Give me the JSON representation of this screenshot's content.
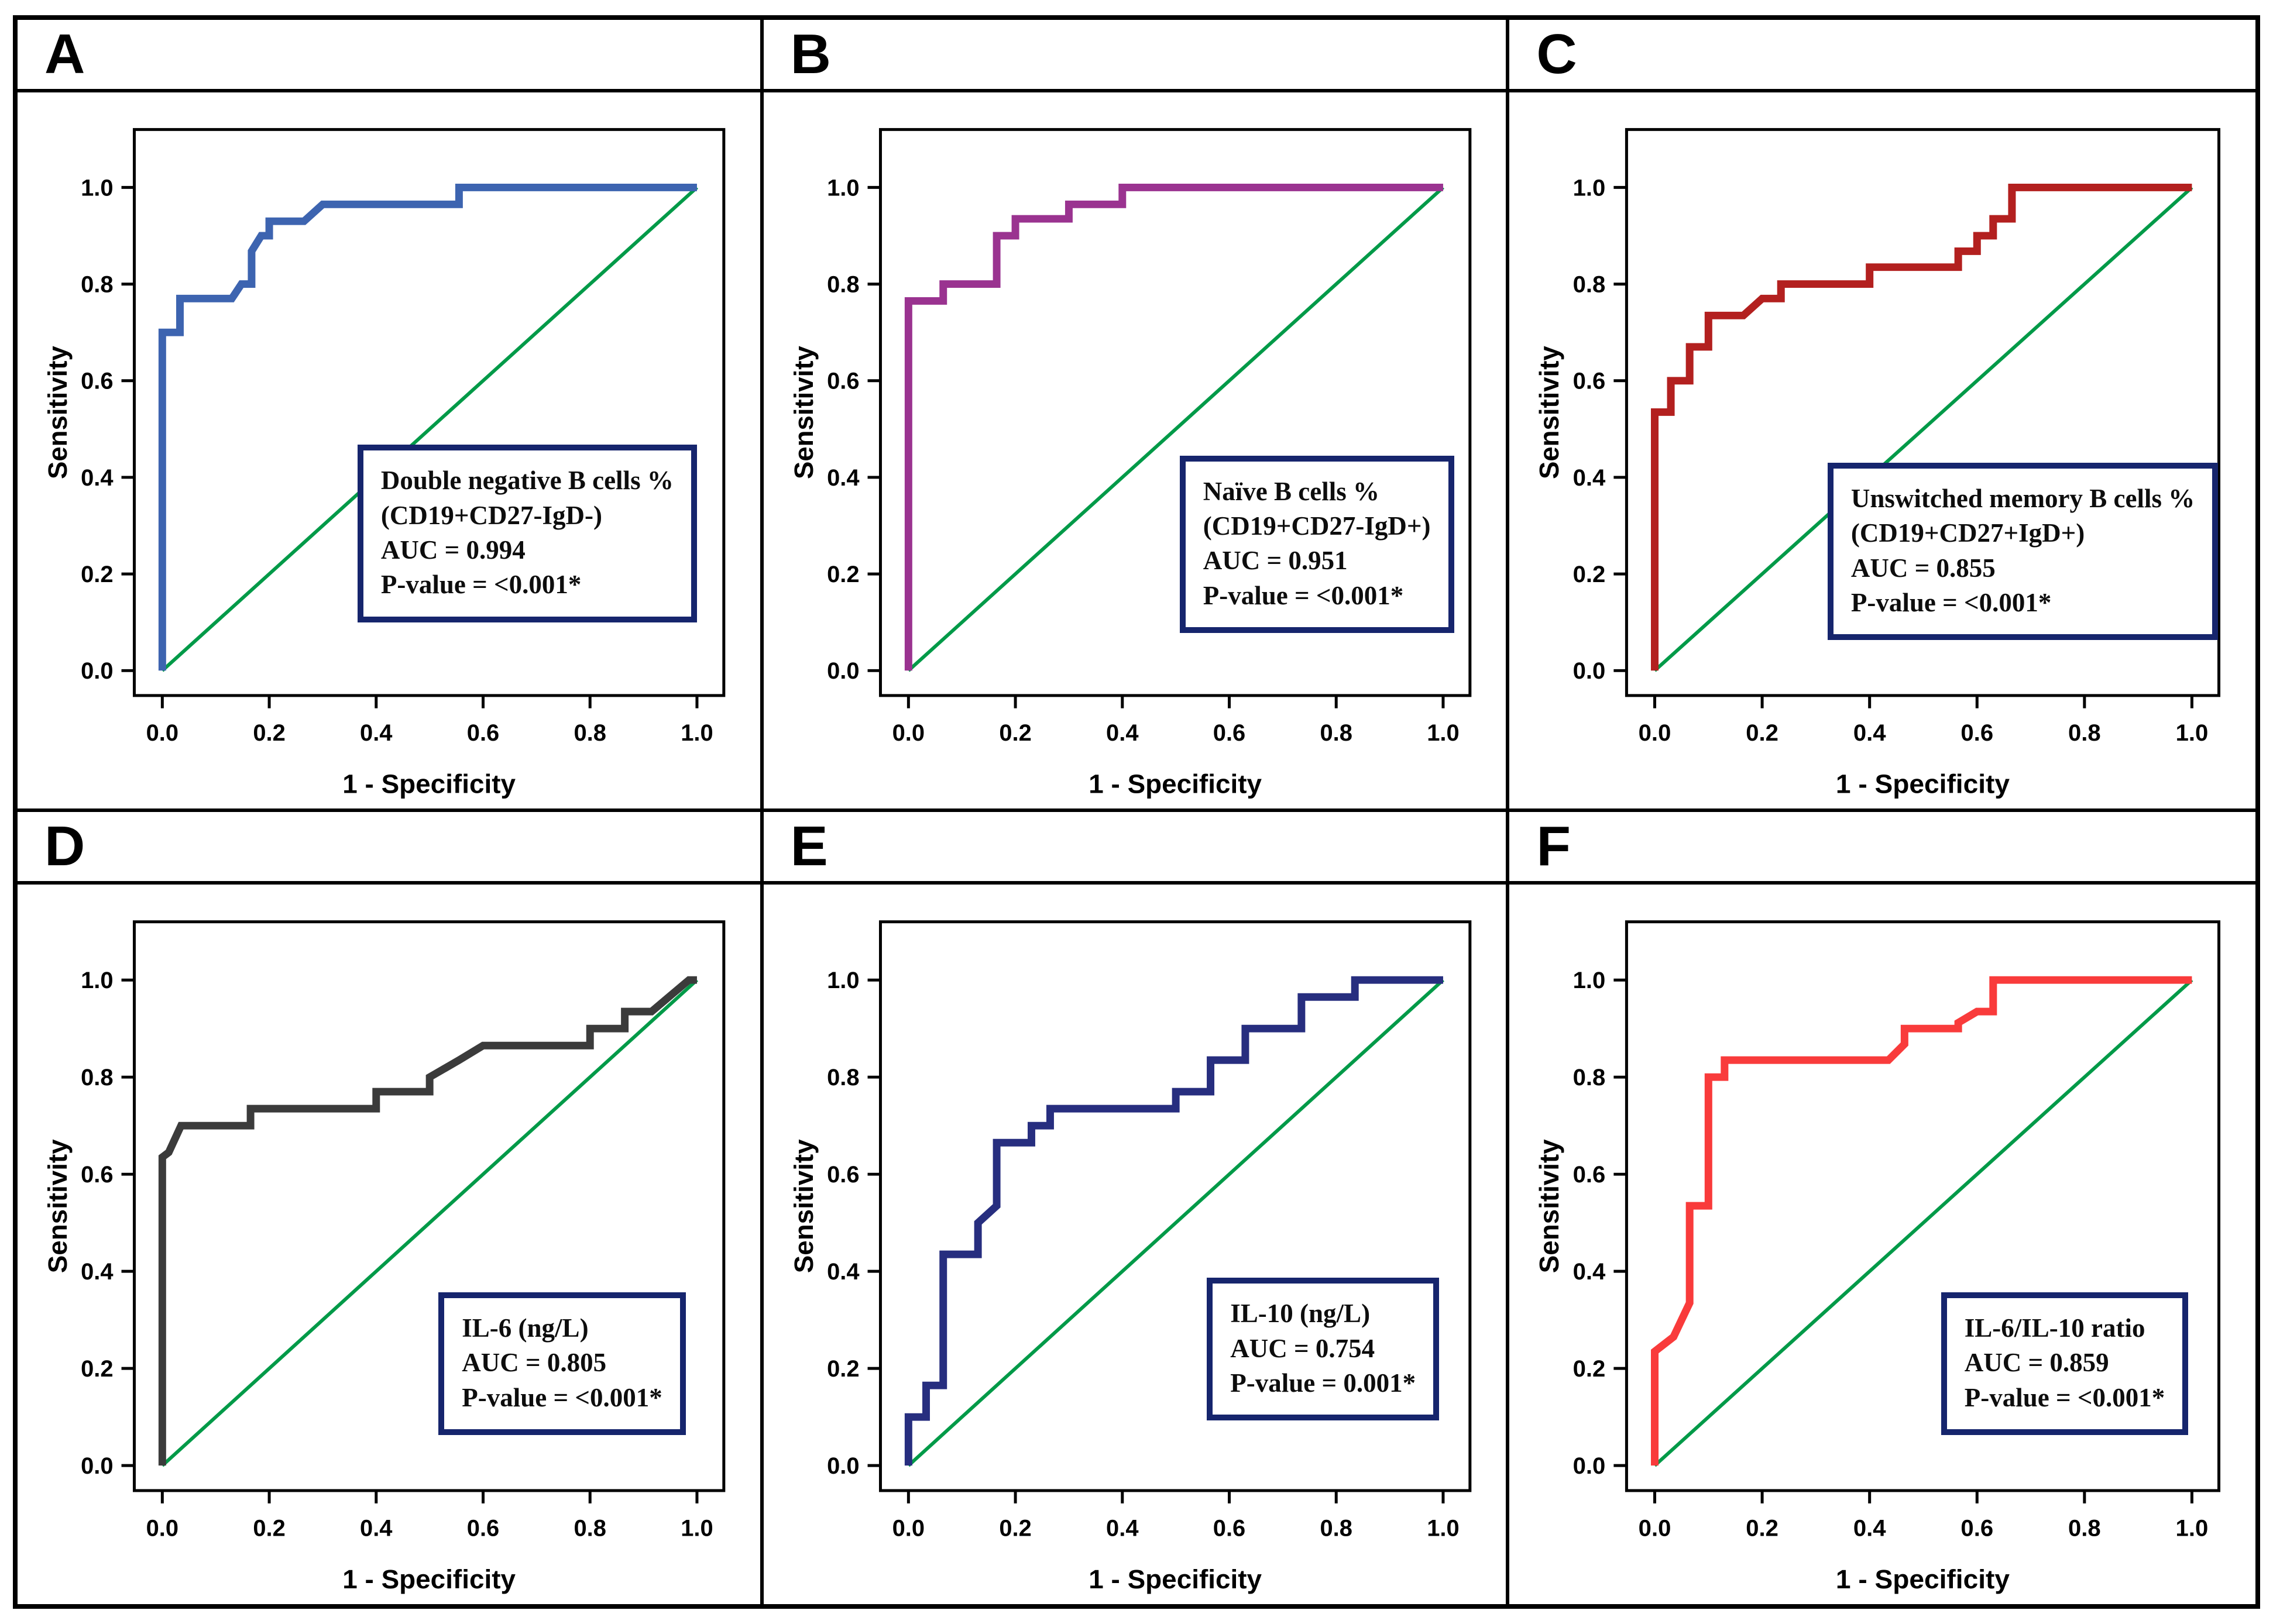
{
  "figure": {
    "background": "#ffffff",
    "border_color": "#000000",
    "panel_letters": [
      "A",
      "B",
      "C",
      "D",
      "E",
      "F"
    ]
  },
  "axes": {
    "xlabel": "1 - Specificity",
    "ylabel": "Sensitivity",
    "tick_values": [
      0.0,
      0.2,
      0.4,
      0.6,
      0.8,
      1.0
    ],
    "tick_labels": [
      "0.0",
      "0.2",
      "0.4",
      "0.6",
      "0.8",
      "1.0"
    ],
    "xlim": [
      -0.06,
      1.06
    ],
    "ylim": [
      -0.06,
      1.1
    ],
    "grid": "off"
  },
  "colors": {
    "diagonal_reference": "#009A48",
    "legend_border": "#16256d",
    "frame": "#000000",
    "text": "#0d0d0d"
  },
  "chart_data": [
    {
      "type": "line",
      "panel_label": "A",
      "series_name": "Double negative B cells % ROC curve",
      "curve_color": "#3D64B0",
      "legend_lines": [
        "Double negative B cells %",
        "(CD19+CD27-IgD-)",
        "AUC = 0.994",
        "P-value = <0.001*"
      ],
      "auc": 0.994,
      "p_value": "<0.001*",
      "xlabel": "1 - Specificity",
      "ylabel": "Sensitivity",
      "legend_position": "lower-right",
      "roc_points": [
        [
          0,
          0
        ],
        [
          0,
          0.7
        ],
        [
          0.033,
          0.7
        ],
        [
          0.033,
          0.77
        ],
        [
          0.13,
          0.77
        ],
        [
          0.148,
          0.8
        ],
        [
          0.167,
          0.8
        ],
        [
          0.167,
          0.868
        ],
        [
          0.185,
          0.9
        ],
        [
          0.2,
          0.9
        ],
        [
          0.2,
          0.93
        ],
        [
          0.265,
          0.93
        ],
        [
          0.3,
          0.965
        ],
        [
          0.555,
          0.965
        ],
        [
          0.555,
          1.0
        ],
        [
          1,
          1
        ]
      ],
      "diagonal": [
        [
          0,
          0
        ],
        [
          1,
          1
        ]
      ]
    },
    {
      "type": "line",
      "panel_label": "B",
      "series_name": "Naïve B cells % ROC curve",
      "curve_color": "#9A3390",
      "legend_lines": [
        "Naïve B cells %",
        "(CD19+CD27-IgD+)",
        "AUC = 0.951",
        "P-value = <0.001*"
      ],
      "auc": 0.951,
      "p_value": "<0.001*",
      "xlabel": "1 - Specificity",
      "ylabel": "Sensitivity",
      "legend_position": "lower-right",
      "roc_points": [
        [
          0,
          0
        ],
        [
          0,
          0.765
        ],
        [
          0.065,
          0.765
        ],
        [
          0.065,
          0.8
        ],
        [
          0.165,
          0.8
        ],
        [
          0.165,
          0.9
        ],
        [
          0.2,
          0.9
        ],
        [
          0.2,
          0.935
        ],
        [
          0.3,
          0.935
        ],
        [
          0.3,
          0.965
        ],
        [
          0.4,
          0.965
        ],
        [
          0.4,
          1.0
        ],
        [
          1,
          1
        ]
      ],
      "diagonal": [
        [
          0,
          0
        ],
        [
          1,
          1
        ]
      ]
    },
    {
      "type": "line",
      "panel_label": "C",
      "series_name": "Unswitched memory B cells % ROC curve",
      "curve_color": "#B3201F",
      "legend_lines": [
        "Unswitched memory B cells %",
        "(CD19+CD27+IgD+)",
        "AUC = 0.855",
        "P-value = <0.001*"
      ],
      "auc": 0.855,
      "p_value": "<0.001*",
      "xlabel": "1 - Specificity",
      "ylabel": "Sensitivity",
      "legend_position": "lower-right",
      "roc_points": [
        [
          0,
          0
        ],
        [
          0,
          0.535
        ],
        [
          0.03,
          0.535
        ],
        [
          0.03,
          0.6
        ],
        [
          0.065,
          0.6
        ],
        [
          0.065,
          0.67
        ],
        [
          0.1,
          0.67
        ],
        [
          0.1,
          0.735
        ],
        [
          0.165,
          0.735
        ],
        [
          0.2,
          0.77
        ],
        [
          0.235,
          0.77
        ],
        [
          0.235,
          0.8
        ],
        [
          0.4,
          0.8
        ],
        [
          0.4,
          0.835
        ],
        [
          0.565,
          0.835
        ],
        [
          0.565,
          0.868
        ],
        [
          0.6,
          0.868
        ],
        [
          0.6,
          0.9
        ],
        [
          0.63,
          0.9
        ],
        [
          0.63,
          0.935
        ],
        [
          0.665,
          0.935
        ],
        [
          0.665,
          1.0
        ],
        [
          1,
          1
        ]
      ],
      "diagonal": [
        [
          0,
          0
        ],
        [
          1,
          1
        ]
      ]
    },
    {
      "type": "line",
      "panel_label": "D",
      "series_name": "IL-6 ROC curve",
      "curve_color": "#3B3B3B",
      "legend_lines": [
        "IL-6 (ng/L)",
        "AUC = 0.805",
        "P-value = <0.001*"
      ],
      "auc": 0.805,
      "p_value": "<0.001*",
      "xlabel": "1 - Specificity",
      "ylabel": "Sensitivity",
      "legend_position": "lower-right",
      "roc_points": [
        [
          0,
          0
        ],
        [
          0,
          0.635
        ],
        [
          0.012,
          0.645
        ],
        [
          0.035,
          0.7
        ],
        [
          0.165,
          0.7
        ],
        [
          0.165,
          0.735
        ],
        [
          0.4,
          0.735
        ],
        [
          0.4,
          0.77
        ],
        [
          0.5,
          0.77
        ],
        [
          0.5,
          0.8
        ],
        [
          0.555,
          0.835
        ],
        [
          0.6,
          0.865
        ],
        [
          0.8,
          0.865
        ],
        [
          0.8,
          0.9
        ],
        [
          0.865,
          0.9
        ],
        [
          0.865,
          0.935
        ],
        [
          0.915,
          0.935
        ],
        [
          0.985,
          1.0
        ],
        [
          1,
          1
        ]
      ],
      "diagonal": [
        [
          0,
          0
        ],
        [
          1,
          1
        ]
      ]
    },
    {
      "type": "line",
      "panel_label": "E",
      "series_name": "IL-10 ROC curve",
      "curve_color": "#272E7F",
      "legend_lines": [
        "IL-10 (ng/L)",
        "AUC = 0.754",
        "P-value = 0.001*"
      ],
      "auc": 0.754,
      "p_value": "0.001*",
      "xlabel": "1 - Specificity",
      "ylabel": "Sensitivity",
      "legend_position": "lower-right",
      "roc_points": [
        [
          0,
          0
        ],
        [
          0,
          0.1
        ],
        [
          0.033,
          0.1
        ],
        [
          0.033,
          0.165
        ],
        [
          0.065,
          0.165
        ],
        [
          0.065,
          0.435
        ],
        [
          0.13,
          0.435
        ],
        [
          0.13,
          0.5
        ],
        [
          0.165,
          0.535
        ],
        [
          0.165,
          0.665
        ],
        [
          0.23,
          0.665
        ],
        [
          0.23,
          0.7
        ],
        [
          0.265,
          0.7
        ],
        [
          0.265,
          0.735
        ],
        [
          0.5,
          0.735
        ],
        [
          0.5,
          0.77
        ],
        [
          0.565,
          0.77
        ],
        [
          0.565,
          0.835
        ],
        [
          0.63,
          0.835
        ],
        [
          0.63,
          0.9
        ],
        [
          0.735,
          0.9
        ],
        [
          0.735,
          0.965
        ],
        [
          0.835,
          0.965
        ],
        [
          0.835,
          1.0
        ],
        [
          1,
          1
        ]
      ],
      "diagonal": [
        [
          0,
          0
        ],
        [
          1,
          1
        ]
      ]
    },
    {
      "type": "line",
      "panel_label": "F",
      "series_name": "IL-6/IL-10 ratio ROC curve",
      "curve_color": "#F93B3B",
      "legend_lines": [
        "IL-6/IL-10 ratio",
        "AUC = 0.859",
        "P-value = <0.001*"
      ],
      "auc": 0.859,
      "p_value": "<0.001*",
      "xlabel": "1 - Specificity",
      "ylabel": "Sensitivity",
      "legend_position": "lower-right",
      "roc_points": [
        [
          0,
          0
        ],
        [
          0,
          0.235
        ],
        [
          0.035,
          0.265
        ],
        [
          0.05,
          0.3
        ],
        [
          0.065,
          0.335
        ],
        [
          0.065,
          0.535
        ],
        [
          0.1,
          0.535
        ],
        [
          0.1,
          0.8
        ],
        [
          0.13,
          0.8
        ],
        [
          0.13,
          0.835
        ],
        [
          0.435,
          0.835
        ],
        [
          0.465,
          0.868
        ],
        [
          0.465,
          0.9
        ],
        [
          0.565,
          0.9
        ],
        [
          0.565,
          0.912
        ],
        [
          0.6,
          0.935
        ],
        [
          0.63,
          0.935
        ],
        [
          0.63,
          1.0
        ],
        [
          1,
          1
        ]
      ],
      "diagonal": [
        [
          0,
          0
        ],
        [
          1,
          1
        ]
      ]
    }
  ]
}
